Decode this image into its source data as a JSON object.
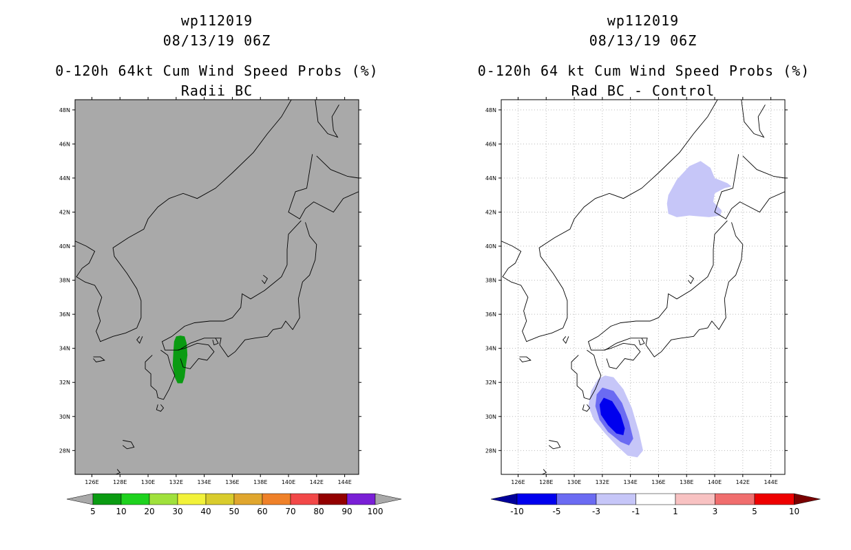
{
  "chart_data": [
    {
      "type": "heatmap",
      "title_lines": [
        "wp112019",
        "08/13/19 06Z",
        "0-120h 64kt Cum Wind Speed Probs (%)",
        "Radii BC"
      ],
      "x_ticks": [
        "126E",
        "128E",
        "130E",
        "132E",
        "134E",
        "136E",
        "138E",
        "140E",
        "142E",
        "144E"
      ],
      "y_ticks": [
        "28N",
        "30N",
        "32N",
        "34N",
        "36N",
        "38N",
        "40N",
        "42N",
        "44N",
        "46N",
        "48N"
      ],
      "xlim": [
        124.8,
        145.0
      ],
      "ylim": [
        26.6,
        48.6
      ],
      "background": "#a9a9a9",
      "grid": false,
      "colorbar": {
        "labels": [
          "5",
          "10",
          "20",
          "30",
          "40",
          "50",
          "60",
          "70",
          "80",
          "90",
          "100"
        ],
        "colors": [
          "#0a9b12",
          "#1ed21e",
          "#a0e13c",
          "#f2f23a",
          "#d9cc2d",
          "#e0a62e",
          "#ef8129",
          "#f24848",
          "#930000",
          "#7a1fd6"
        ],
        "end_colors": [
          "#a9a9a9",
          "#a9a9a9"
        ]
      },
      "contours": [
        {
          "level": "5-10",
          "color": "#0a9b12",
          "points": [
            [
              132.0,
              34.7
            ],
            [
              132.3,
              34.75
            ],
            [
              132.6,
              34.7
            ],
            [
              132.75,
              34.3
            ],
            [
              132.8,
              33.6
            ],
            [
              132.7,
              33.0
            ],
            [
              132.6,
              32.3
            ],
            [
              132.45,
              31.95
            ],
            [
              132.1,
              31.95
            ],
            [
              131.9,
              32.3
            ],
            [
              131.75,
              33.0
            ],
            [
              131.8,
              33.8
            ],
            [
              131.85,
              34.4
            ]
          ]
        }
      ]
    },
    {
      "type": "heatmap",
      "title_lines": [
        "wp112019",
        "08/13/19 06Z",
        "0-120h 64 kt Cum Wind Speed Probs (%)",
        "Rad BC - Control"
      ],
      "x_ticks": [
        "126E",
        "128E",
        "130E",
        "132E",
        "134E",
        "136E",
        "138E",
        "140E",
        "142E",
        "144E"
      ],
      "y_ticks": [
        "28N",
        "30N",
        "32N",
        "34N",
        "36N",
        "38N",
        "40N",
        "42N",
        "44N",
        "46N",
        "48N"
      ],
      "xlim": [
        124.8,
        145.0
      ],
      "ylim": [
        26.6,
        48.6
      ],
      "background": "#ffffff",
      "grid": true,
      "colorbar": {
        "labels": [
          "-10",
          "-5",
          "-3",
          "-1",
          "1",
          "3",
          "5",
          "10"
        ],
        "colors": [
          "#0000ee",
          "#6b6bf2",
          "#c6c6f8",
          "#ffffff",
          "#f8c2c2",
          "#f06e6e",
          "#ee0000"
        ],
        "end_colors": [
          "#00009a",
          "#7a0000"
        ]
      },
      "contours": [
        {
          "level": "-3 to -1",
          "color": "#c6c6f8",
          "points": [
            [
              132.2,
              32.4
            ],
            [
              132.8,
              32.3
            ],
            [
              133.5,
              31.6
            ],
            [
              134.1,
              30.5
            ],
            [
              134.6,
              29.1
            ],
            [
              134.9,
              28.0
            ],
            [
              134.5,
              27.6
            ],
            [
              133.8,
              27.7
            ],
            [
              133.0,
              28.3
            ],
            [
              132.2,
              29.0
            ],
            [
              131.4,
              29.8
            ],
            [
              131.0,
              30.6
            ],
            [
              131.2,
              31.5
            ],
            [
              131.7,
              32.2
            ]
          ]
        },
        {
          "level": "-5 to -3",
          "color": "#6b6bf2",
          "points": [
            [
              132.0,
              31.7
            ],
            [
              132.8,
              31.5
            ],
            [
              133.4,
              30.8
            ],
            [
              133.9,
              29.7
            ],
            [
              134.2,
              28.7
            ],
            [
              133.9,
              28.3
            ],
            [
              133.3,
              28.5
            ],
            [
              132.4,
              29.1
            ],
            [
              131.8,
              29.8
            ],
            [
              131.5,
              30.6
            ],
            [
              131.6,
              31.3
            ]
          ]
        },
        {
          "level": "<-5",
          "color": "#0000ee",
          "points": [
            [
              132.1,
              31.1
            ],
            [
              132.7,
              30.9
            ],
            [
              133.3,
              30.1
            ],
            [
              133.6,
              29.3
            ],
            [
              133.5,
              28.9
            ],
            [
              133.0,
              29.0
            ],
            [
              132.4,
              29.5
            ],
            [
              131.9,
              30.1
            ],
            [
              131.8,
              30.7
            ]
          ]
        },
        {
          "level": "-3 to -1 (north)",
          "color": "#c6c6f8",
          "points": [
            [
              136.7,
              43.0
            ],
            [
              137.3,
              43.9
            ],
            [
              138.2,
              44.7
            ],
            [
              139.0,
              45.0
            ],
            [
              139.7,
              44.6
            ],
            [
              140.0,
              44.0
            ],
            [
              140.9,
              43.7
            ],
            [
              141.2,
              43.5
            ],
            [
              140.7,
              43.4
            ],
            [
              140.0,
              43.1
            ],
            [
              139.9,
              42.6
            ],
            [
              140.5,
              42.1
            ],
            [
              140.4,
              41.8
            ],
            [
              139.6,
              41.7
            ],
            [
              138.2,
              41.8
            ],
            [
              137.3,
              41.7
            ],
            [
              136.7,
              41.9
            ],
            [
              136.6,
              42.5
            ]
          ]
        }
      ]
    }
  ]
}
